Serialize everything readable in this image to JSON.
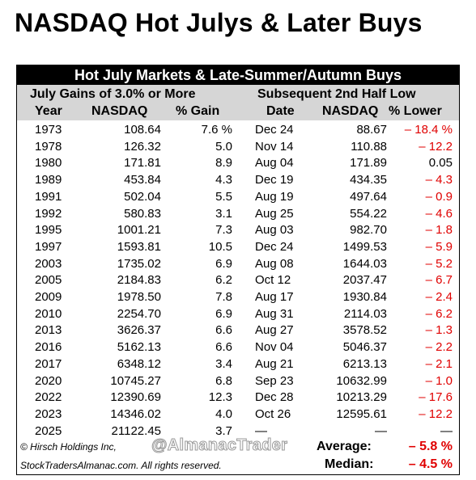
{
  "title": "NASDAQ Hot Julys & Later Buys",
  "table": {
    "header": "Hot July Markets & Late-Summer/Autumn Buys",
    "left_group": "July Gains of 3.0% or More",
    "right_group": "Subsequent 2nd Half Low",
    "columns": [
      "Year",
      "NASDAQ",
      "% Gain",
      "Date",
      "NASDAQ",
      "% Lower"
    ],
    "rows": [
      {
        "year": "1973",
        "nasdaq": "108.64",
        "gain": "7.6 %",
        "date": "Dec 24",
        "low_nasdaq": "88.67",
        "lower": "– 18.4 %"
      },
      {
        "year": "1978",
        "nasdaq": "126.32",
        "gain": "5.0",
        "date": "Nov 14",
        "low_nasdaq": "110.88",
        "lower": "– 12.2"
      },
      {
        "year": "1980",
        "nasdaq": "171.81",
        "gain": "8.9",
        "date": "Aug 04",
        "low_nasdaq": "171.89",
        "lower": "0.05"
      },
      {
        "year": "1989",
        "nasdaq": "453.84",
        "gain": "4.3",
        "date": "Dec 19",
        "low_nasdaq": "434.35",
        "lower": "– 4.3"
      },
      {
        "year": "1991",
        "nasdaq": "502.04",
        "gain": "5.5",
        "date": "Aug 19",
        "low_nasdaq": "497.64",
        "lower": "– 0.9"
      },
      {
        "year": "1992",
        "nasdaq": "580.83",
        "gain": "3.1",
        "date": "Aug 25",
        "low_nasdaq": "554.22",
        "lower": "– 4.6"
      },
      {
        "year": "1995",
        "nasdaq": "1001.21",
        "gain": "7.3",
        "date": "Aug 03",
        "low_nasdaq": "982.70",
        "lower": "– 1.8"
      },
      {
        "year": "1997",
        "nasdaq": "1593.81",
        "gain": "10.5",
        "date": "Dec 24",
        "low_nasdaq": "1499.53",
        "lower": "– 5.9"
      },
      {
        "year": "2003",
        "nasdaq": "1735.02",
        "gain": "6.9",
        "date": "Aug 08",
        "low_nasdaq": "1644.03",
        "lower": "– 5.2"
      },
      {
        "year": "2005",
        "nasdaq": "2184.83",
        "gain": "6.2",
        "date": "Oct 12",
        "low_nasdaq": "2037.47",
        "lower": "– 6.7"
      },
      {
        "year": "2009",
        "nasdaq": "1978.50",
        "gain": "7.8",
        "date": "Aug 17",
        "low_nasdaq": "1930.84",
        "lower": "– 2.4"
      },
      {
        "year": "2010",
        "nasdaq": "2254.70",
        "gain": "6.9",
        "date": "Aug 31",
        "low_nasdaq": "2114.03",
        "lower": "– 6.2"
      },
      {
        "year": "2013",
        "nasdaq": "3626.37",
        "gain": "6.6",
        "date": "Aug 27",
        "low_nasdaq": "3578.52",
        "lower": "– 1.3"
      },
      {
        "year": "2016",
        "nasdaq": "5162.13",
        "gain": "6.6",
        "date": "Nov 04",
        "low_nasdaq": "5046.37",
        "lower": "– 2.2"
      },
      {
        "year": "2017",
        "nasdaq": "6348.12",
        "gain": "3.4",
        "date": "Aug 21",
        "low_nasdaq": "6213.13",
        "lower": "– 2.1"
      },
      {
        "year": "2020",
        "nasdaq": "10745.27",
        "gain": "6.8",
        "date": "Sep 23",
        "low_nasdaq": "10632.99",
        "lower": "– 1.0"
      },
      {
        "year": "2022",
        "nasdaq": "12390.69",
        "gain": "12.3",
        "date": "Dec 28",
        "low_nasdaq": "10213.29",
        "lower": "– 17.6"
      },
      {
        "year": "2023",
        "nasdaq": "14346.02",
        "gain": "4.0",
        "date": "Oct 26",
        "low_nasdaq": "12595.61",
        "lower": "– 12.2"
      },
      {
        "year": "2025",
        "nasdaq": "21122.45",
        "gain": "3.7",
        "date": "—",
        "low_nasdaq": "—",
        "lower": "—"
      }
    ],
    "average_label": "Average:",
    "average_value": "– 5.8 %",
    "median_label": "Median:",
    "median_value": "– 4.5 %"
  },
  "footer": {
    "copyright": "© Hirsch Holdings Inc,",
    "watermark": "@AlmanacTrader",
    "site": "StockTradersAlmanac.com. All rights reserved."
  },
  "colors": {
    "negative": "#e00000",
    "header_bg": "#000000",
    "subheader_bg": "#d6d6d6"
  }
}
